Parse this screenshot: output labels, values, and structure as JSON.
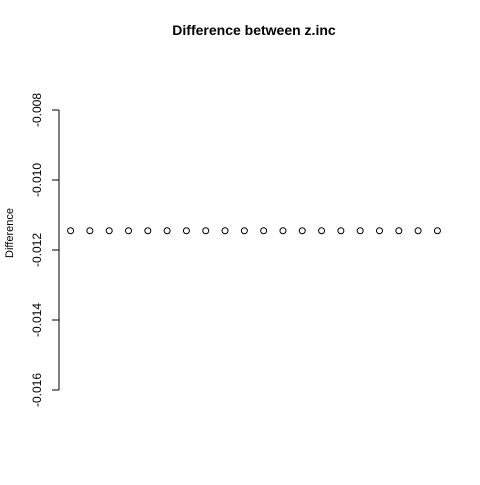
{
  "chart_data": {
    "type": "scatter",
    "title": "Difference between z.inc",
    "xlabel": "",
    "ylabel": "Difference",
    "ylim": [
      -0.016,
      -0.008
    ],
    "y_ticks": [
      -0.008,
      -0.01,
      -0.012,
      -0.014,
      -0.016
    ],
    "y_tick_labels": [
      "-0.008",
      "-0.010",
      "-0.012",
      "-0.014",
      "-0.016"
    ],
    "x": [
      1,
      2,
      3,
      4,
      5,
      6,
      7,
      8,
      9,
      10,
      11,
      12,
      13,
      14,
      15,
      16,
      17,
      18,
      19,
      20
    ],
    "xlim": [
      0.4,
      20.6
    ],
    "values": [
      -0.01145,
      -0.01145,
      -0.01145,
      -0.01145,
      -0.01145,
      -0.01145,
      -0.01145,
      -0.01145,
      -0.01145,
      -0.01145,
      -0.01145,
      -0.01145,
      -0.01145,
      -0.01145,
      -0.01145,
      -0.01145,
      -0.01145,
      -0.01145,
      -0.01145,
      -0.01145
    ],
    "marker": "open-circle",
    "x_axis_drawn": false,
    "grid": false,
    "colors": {
      "points": "#000000",
      "axis": "#000000",
      "background": "#ffffff"
    }
  }
}
